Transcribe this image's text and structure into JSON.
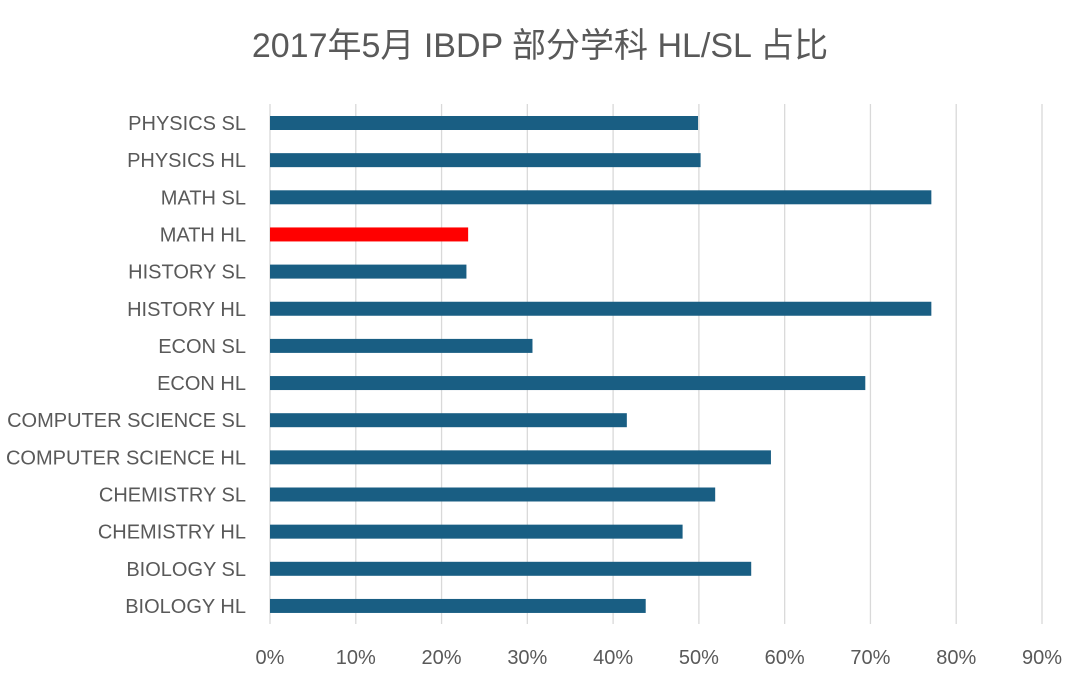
{
  "chart_data": {
    "type": "bar",
    "orientation": "horizontal",
    "title": "2017年5月 IBDP 部分学科 HL/SL 占比",
    "xlabel": "",
    "ylabel": "",
    "categories": [
      "PHYSICS SL",
      "PHYSICS HL",
      "MATH SL",
      "MATH HL",
      "HISTORY SL",
      "HISTORY HL",
      "ECON SL",
      "ECON HL",
      "COMPUTER SCIENCE SL",
      "COMPUTER SCIENCE HL",
      "CHEMISTRY SL",
      "CHEMISTRY HL",
      "BIOLOGY SL",
      "BIOLOGY HL"
    ],
    "values": [
      0.499,
      0.502,
      0.771,
      0.231,
      0.229,
      0.771,
      0.306,
      0.694,
      0.416,
      0.584,
      0.519,
      0.481,
      0.561,
      0.438
    ],
    "xlim": [
      0,
      0.9
    ],
    "x_ticks": [
      0,
      0.1,
      0.2,
      0.3,
      0.4,
      0.5,
      0.6,
      0.7,
      0.8,
      0.9
    ],
    "x_tick_labels": [
      "0%",
      "10%",
      "20%",
      "30%",
      "40%",
      "50%",
      "60%",
      "70%",
      "80%",
      "90%"
    ],
    "grid": "vertical",
    "legend": "none",
    "bar_color": "#195e83",
    "highlight_category": "MATH HL",
    "highlight_color": "#ff0000",
    "grid_color": "#d9d9d9",
    "text_color": "#595959"
  }
}
